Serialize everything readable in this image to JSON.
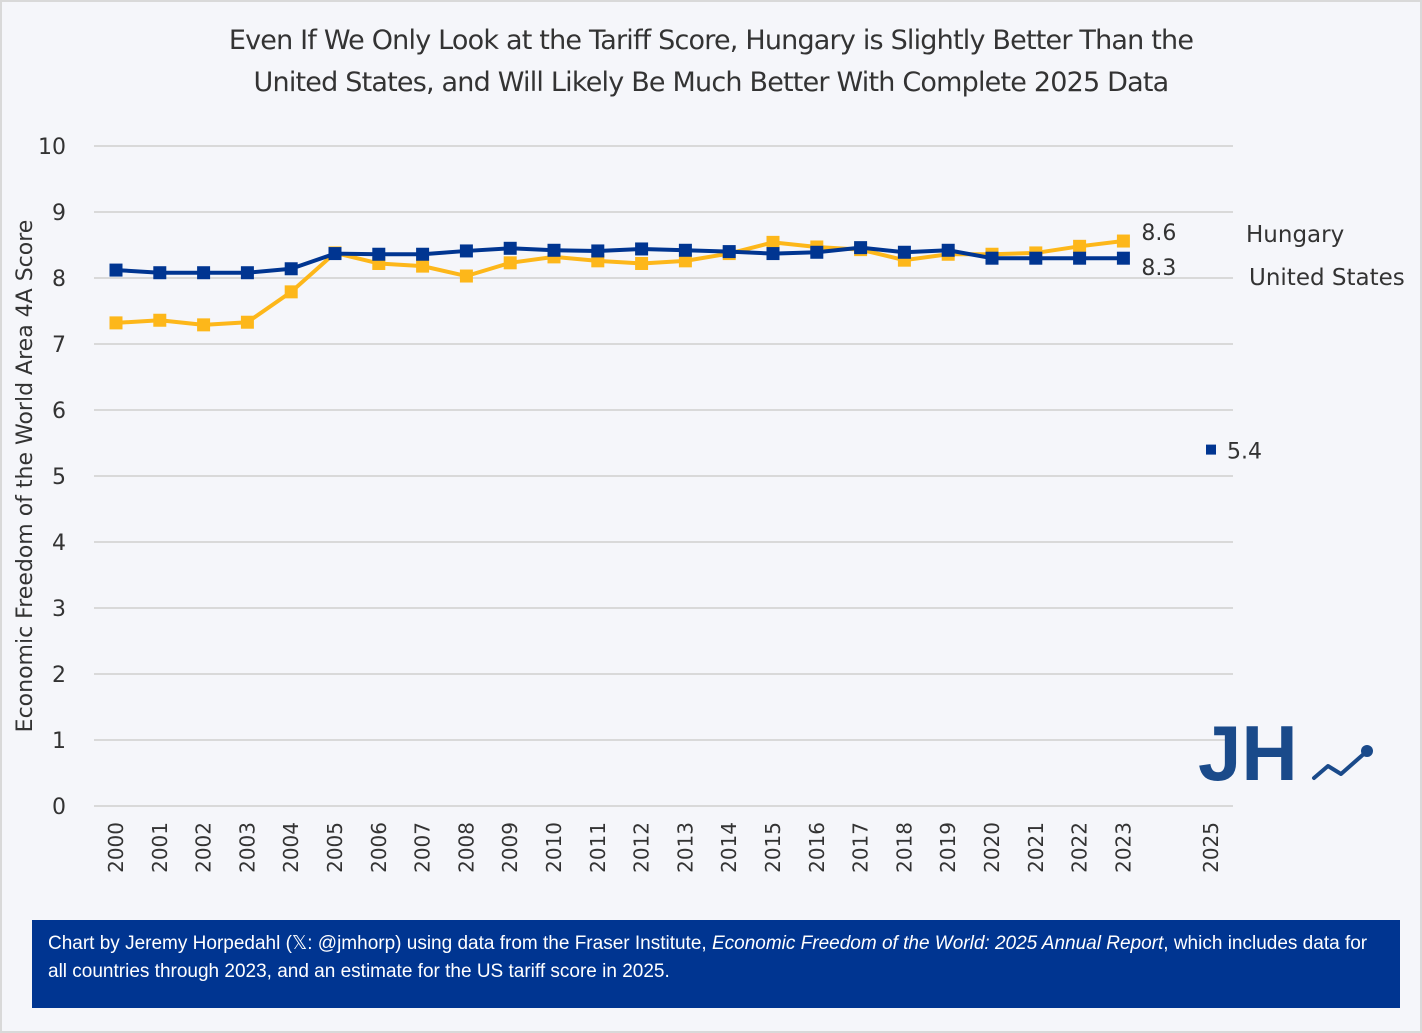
{
  "chart_data": {
    "type": "line",
    "title_lines": [
      "Even If We Only Look at the Tariff Score, Hungary is Slightly Better Than the",
      "United States, and Will Likely Be Much Better With Complete 2025 Data"
    ],
    "xlabel": "",
    "ylabel": "Economic Freedom of the World Area 4A Score",
    "ylim": [
      0,
      10
    ],
    "yticks": [
      0,
      1,
      2,
      3,
      4,
      5,
      6,
      7,
      8,
      9,
      10
    ],
    "x": [
      2000,
      2001,
      2002,
      2003,
      2004,
      2005,
      2006,
      2007,
      2008,
      2009,
      2010,
      2011,
      2012,
      2013,
      2014,
      2015,
      2016,
      2017,
      2018,
      2019,
      2020,
      2021,
      2022,
      2023
    ],
    "xticks": [
      2000,
      2001,
      2002,
      2003,
      2004,
      2005,
      2006,
      2007,
      2008,
      2009,
      2010,
      2011,
      2012,
      2013,
      2014,
      2015,
      2016,
      2017,
      2018,
      2019,
      2020,
      2021,
      2022,
      2023,
      2025
    ],
    "xlim": [
      2000,
      2025
    ],
    "grid": true,
    "series": [
      {
        "name": "Hungary",
        "color": "#fdb71a",
        "values": [
          7.32,
          7.36,
          7.29,
          7.33,
          7.79,
          8.38,
          8.22,
          8.18,
          8.03,
          8.23,
          8.32,
          8.26,
          8.22,
          8.26,
          8.37,
          8.54,
          8.47,
          8.43,
          8.27,
          8.36,
          8.36,
          8.38,
          8.48,
          8.56
        ],
        "end_label": "8.6",
        "legend_label": "Hungary"
      },
      {
        "name": "United States",
        "color": "#003591",
        "values": [
          8.12,
          8.08,
          8.08,
          8.08,
          8.14,
          8.37,
          8.36,
          8.36,
          8.41,
          8.45,
          8.42,
          8.41,
          8.44,
          8.42,
          8.4,
          8.37,
          8.39,
          8.46,
          8.39,
          8.42,
          8.3,
          8.3,
          8.3,
          8.3
        ],
        "end_label": "8.3",
        "legend_label": "United States"
      }
    ],
    "extra_points": [
      {
        "series": "United States",
        "x": 2025,
        "value": 5.4,
        "label": "5.4",
        "color": "#003591"
      }
    ],
    "legend_placement": "right"
  },
  "footer": {
    "text_before": "Chart by Jeremy Horpedahl (𝕏: @jmhorp) using data from the Fraser Institute, ",
    "text_italic": "Economic Freedom of the World: 2025 Annual Report",
    "text_after": ", which includes data for all countries through 2023, and an estimate for the US tariff score in 2025."
  },
  "logo": {
    "text": "JH",
    "color": "#1a4a8a"
  }
}
